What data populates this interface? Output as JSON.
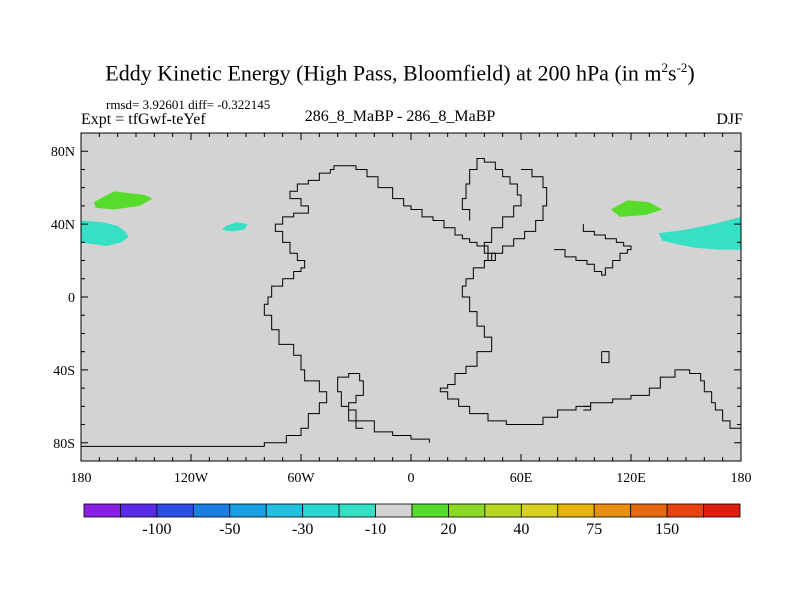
{
  "title_main": "Eddy Kinetic Energy (High Pass, Bloomfield) at 200 hPa (in m",
  "title_sup1": "2",
  "title_mid": "s",
  "title_sup2": "-2",
  "title_end": ")",
  "stats": "rmsd= 3.92601 diff= -0.322145",
  "expt": "Expt = tfGwf-teYef",
  "center_label": "286_8_MaBP - 286_8_MaBP",
  "season": "DJF",
  "colors": {
    "background_field": "#d3d3d3",
    "cyan": "#36e0c4",
    "green": "#56dc2a",
    "outline": "#000000"
  },
  "chart_data": {
    "type": "heatmap",
    "projection": "cylindrical-equidistant",
    "xlabels": [
      "180",
      "120W",
      "60W",
      "0",
      "60E",
      "120E",
      "180"
    ],
    "xticks": [
      -180,
      -120,
      -60,
      0,
      60,
      120,
      180
    ],
    "ylabels": [
      "80S",
      "40S",
      "0",
      "40N",
      "80N"
    ],
    "yticks": [
      -80,
      -40,
      0,
      40,
      80
    ],
    "xlim": [
      -180,
      180
    ],
    "ylim": [
      -90,
      90
    ],
    "colorbar": {
      "colors": [
        "#8a1ee6",
        "#5a2ae6",
        "#2a4ee6",
        "#1a7ee6",
        "#1aa0e6",
        "#22c0e0",
        "#2ad8d0",
        "#36e0c4",
        "#d3d3d3",
        "#56dc2a",
        "#8cd826",
        "#b8d820",
        "#d8d020",
        "#e8b410",
        "#e89010",
        "#e86a10",
        "#e84210",
        "#e01e10"
      ],
      "labels": [
        "-100",
        "-50",
        "-30",
        "-10",
        "20",
        "40",
        "75",
        "150"
      ]
    },
    "anomaly_regions": [
      {
        "name": "cyan-west-pacific",
        "color": "#36e0c4",
        "points": [
          [
            -180,
            42
          ],
          [
            -168,
            41
          ],
          [
            -160,
            39
          ],
          [
            -156,
            36
          ],
          [
            -154,
            33
          ],
          [
            -158,
            30
          ],
          [
            -166,
            28
          ],
          [
            -174,
            29
          ],
          [
            -180,
            30
          ]
        ]
      },
      {
        "name": "cyan-east-pacific-small",
        "color": "#36e0c4",
        "points": [
          [
            -101,
            39
          ],
          [
            -95,
            41
          ],
          [
            -89,
            40
          ],
          [
            -91,
            37
          ],
          [
            -98,
            36
          ],
          [
            -103,
            37
          ]
        ]
      },
      {
        "name": "green-north-pacific",
        "color": "#56dc2a",
        "points": [
          [
            -173,
            52
          ],
          [
            -162,
            58
          ],
          [
            -145,
            56
          ],
          [
            -141,
            54
          ],
          [
            -148,
            50
          ],
          [
            -162,
            48
          ],
          [
            -172,
            49
          ]
        ]
      },
      {
        "name": "green-east-asia",
        "color": "#56dc2a",
        "points": [
          [
            109,
            48
          ],
          [
            118,
            53
          ],
          [
            130,
            52
          ],
          [
            137,
            48
          ],
          [
            128,
            45
          ],
          [
            114,
            44
          ]
        ]
      },
      {
        "name": "cyan-east-asia-pacific",
        "color": "#36e0c4",
        "points": [
          [
            135,
            35
          ],
          [
            150,
            37
          ],
          [
            165,
            40
          ],
          [
            180,
            44
          ],
          [
            180,
            26
          ],
          [
            168,
            26
          ],
          [
            155,
            27
          ],
          [
            145,
            29
          ],
          [
            137,
            31
          ]
        ]
      }
    ],
    "coastlines": [
      [
        [
          -180,
          -82
        ],
        [
          -88,
          -82
        ],
        [
          -80,
          -80
        ],
        [
          -72,
          -80
        ],
        [
          -68,
          -76
        ],
        [
          -60,
          -72
        ],
        [
          -56,
          -64
        ],
        [
          -50,
          -58
        ],
        [
          -46,
          -52
        ],
        [
          -50,
          -46
        ],
        [
          -58,
          -40
        ],
        [
          -60,
          -32
        ],
        [
          -64,
          -26
        ],
        [
          -72,
          -18
        ],
        [
          -76,
          -10
        ],
        [
          -80,
          -4
        ],
        [
          -78,
          0
        ],
        [
          -76,
          6
        ],
        [
          -70,
          10
        ],
        [
          -64,
          14
        ],
        [
          -60,
          16
        ],
        [
          -58,
          20
        ],
        [
          -62,
          24
        ],
        [
          -66,
          30
        ],
        [
          -70,
          36
        ],
        [
          -74,
          40
        ],
        [
          -70,
          44
        ],
        [
          -64,
          46
        ],
        [
          -56,
          50
        ],
        [
          -60,
          54
        ],
        [
          -66,
          58
        ],
        [
          -62,
          62
        ],
        [
          -56,
          64
        ],
        [
          -50,
          68
        ],
        [
          -44,
          70
        ],
        [
          -42,
          72
        ],
        [
          -30,
          70
        ],
        [
          -24,
          66
        ],
        [
          -18,
          60
        ],
        [
          -10,
          54
        ],
        [
          -4,
          50
        ],
        [
          0,
          48
        ],
        [
          6,
          44
        ],
        [
          12,
          42
        ],
        [
          18,
          38
        ],
        [
          24,
          34
        ],
        [
          28,
          32
        ],
        [
          32,
          30
        ],
        [
          36,
          28
        ],
        [
          42,
          24
        ],
        [
          46,
          20
        ],
        [
          40,
          16
        ],
        [
          34,
          10
        ],
        [
          30,
          6
        ],
        [
          28,
          0
        ],
        [
          32,
          -8
        ],
        [
          36,
          -16
        ],
        [
          40,
          -22
        ],
        [
          44,
          -30
        ],
        [
          36,
          -38
        ],
        [
          30,
          -42
        ],
        [
          24,
          -48
        ],
        [
          20,
          -50
        ],
        [
          16,
          -52
        ],
        [
          20,
          -56
        ],
        [
          26,
          -60
        ],
        [
          32,
          -64
        ],
        [
          42,
          -68
        ],
        [
          52,
          -70
        ],
        [
          64,
          -70
        ],
        [
          72,
          -66
        ],
        [
          80,
          -62
        ],
        [
          90,
          -60
        ],
        [
          98,
          -58
        ],
        [
          110,
          -56
        ],
        [
          120,
          -54
        ],
        [
          130,
          -50
        ],
        [
          136,
          -44
        ],
        [
          144,
          -40
        ],
        [
          152,
          -42
        ],
        [
          158,
          -46
        ],
        [
          160,
          -52
        ],
        [
          164,
          -58
        ],
        [
          166,
          -62
        ],
        [
          170,
          -68
        ],
        [
          174,
          -72
        ],
        [
          180,
          -78
        ]
      ],
      [
        [
          -26,
          -72
        ],
        [
          -30,
          -68
        ],
        [
          -34,
          -60
        ],
        [
          -38,
          -52
        ],
        [
          -40,
          -44
        ],
        [
          -34,
          -42
        ],
        [
          -28,
          -46
        ],
        [
          -26,
          -54
        ],
        [
          -30,
          -58
        ],
        [
          -34,
          -62
        ],
        [
          -30,
          -68
        ],
        [
          -20,
          -74
        ],
        [
          -10,
          -76
        ],
        [
          0,
          -78
        ],
        [
          10,
          -80
        ]
      ],
      [
        [
          60,
          70
        ],
        [
          66,
          66
        ],
        [
          72,
          60
        ],
        [
          74,
          50
        ],
        [
          72,
          42
        ],
        [
          68,
          36
        ],
        [
          62,
          32
        ],
        [
          56,
          28
        ],
        [
          50,
          24
        ],
        [
          44,
          20
        ],
        [
          42,
          24
        ],
        [
          40,
          30
        ],
        [
          44,
          38
        ],
        [
          50,
          44
        ],
        [
          56,
          50
        ],
        [
          60,
          56
        ],
        [
          58,
          62
        ],
        [
          54,
          66
        ],
        [
          50,
          70
        ],
        [
          46,
          74
        ],
        [
          40,
          76
        ],
        [
          36,
          70
        ],
        [
          32,
          62
        ],
        [
          30,
          54
        ],
        [
          28,
          48
        ],
        [
          32,
          42
        ]
      ],
      [
        [
          78,
          26
        ],
        [
          84,
          22
        ],
        [
          90,
          20
        ],
        [
          96,
          18
        ],
        [
          100,
          14
        ],
        [
          104,
          12
        ],
        [
          106,
          16
        ],
        [
          110,
          20
        ],
        [
          114,
          24
        ],
        [
          118,
          26
        ],
        [
          120,
          28
        ],
        [
          116,
          30
        ],
        [
          112,
          32
        ],
        [
          106,
          34
        ],
        [
          100,
          36
        ],
        [
          94,
          40
        ]
      ],
      [
        [
          104,
          -30
        ],
        [
          104,
          -36
        ],
        [
          108,
          -36
        ],
        [
          108,
          -30
        ],
        [
          104,
          -30
        ]
      ],
      [
        [
          94,
          -62
        ],
        [
          98,
          -62
        ],
        [
          98,
          -60
        ],
        [
          94,
          -60
        ]
      ]
    ]
  }
}
